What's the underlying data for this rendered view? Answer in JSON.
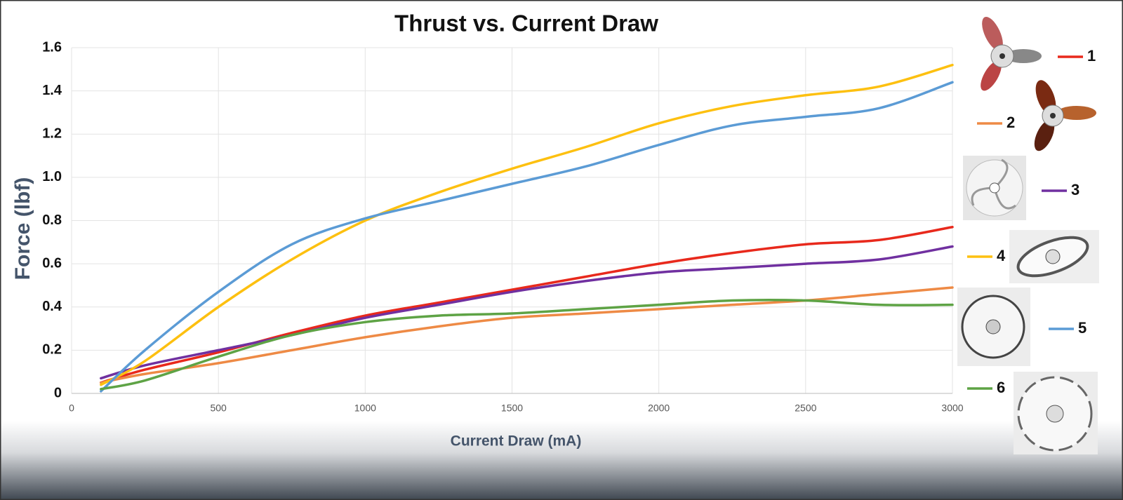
{
  "chart_data": {
    "type": "line",
    "title": "Thrust vs. Current Draw",
    "x_label": "Current Draw (mA)",
    "y_label": "Force (lbf)",
    "x": [
      100,
      250,
      500,
      750,
      1000,
      1250,
      1500,
      1750,
      2000,
      2250,
      2500,
      2750,
      3000
    ],
    "series": [
      {
        "name": "1",
        "color": "#e8291c",
        "values": [
          0.05,
          0.11,
          0.19,
          0.28,
          0.36,
          0.42,
          0.48,
          0.54,
          0.6,
          0.65,
          0.69,
          0.71,
          0.77
        ]
      },
      {
        "name": "2",
        "color": "#ee8a45",
        "values": [
          0.05,
          0.09,
          0.14,
          0.2,
          0.26,
          0.31,
          0.35,
          0.37,
          0.39,
          0.41,
          0.43,
          0.46,
          0.49
        ]
      },
      {
        "name": "3",
        "color": "#7030a0",
        "values": [
          0.07,
          0.13,
          0.2,
          0.27,
          0.35,
          0.41,
          0.47,
          0.52,
          0.56,
          0.58,
          0.6,
          0.62,
          0.68
        ]
      },
      {
        "name": "4",
        "color": "#fdc010",
        "values": [
          0.04,
          0.15,
          0.4,
          0.62,
          0.8,
          0.93,
          1.04,
          1.14,
          1.25,
          1.33,
          1.38,
          1.42,
          1.52
        ]
      },
      {
        "name": "5",
        "color": "#5b9bd5",
        "values": [
          0.01,
          0.2,
          0.47,
          0.69,
          0.81,
          0.89,
          0.97,
          1.05,
          1.15,
          1.24,
          1.28,
          1.32,
          1.44
        ]
      },
      {
        "name": "6",
        "color": "#5ea345",
        "values": [
          0.02,
          0.06,
          0.17,
          0.27,
          0.33,
          0.36,
          0.37,
          0.39,
          0.41,
          0.43,
          0.43,
          0.41,
          0.41
        ]
      }
    ],
    "xlim": [
      0,
      3000
    ],
    "xticks": [
      0,
      500,
      1000,
      1500,
      2000,
      2500,
      3000
    ],
    "ylim": [
      0,
      1.6
    ],
    "yticks": [
      0,
      0.2,
      0.4,
      0.6,
      0.8,
      {
        "value": 1,
        "label": "1.0"
      },
      1.2,
      1.4,
      1.6
    ],
    "grid": true
  }
}
